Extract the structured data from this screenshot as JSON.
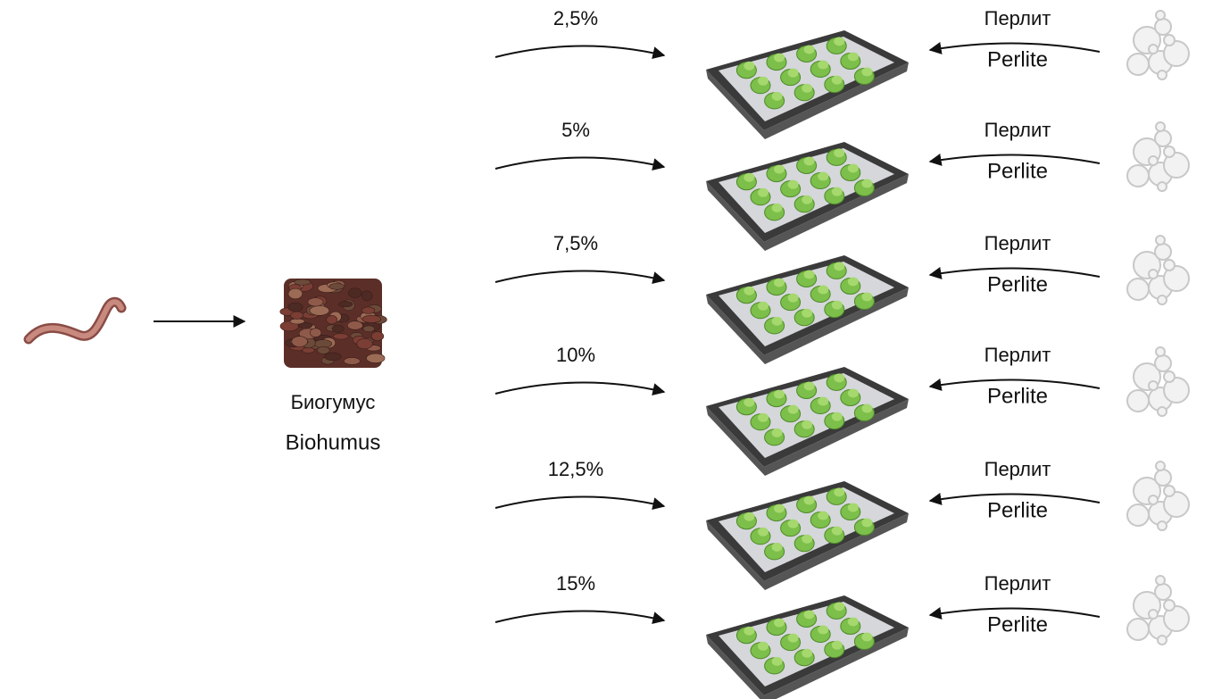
{
  "source": {
    "label_ru": "Биогумус",
    "label_en": "Biohumus"
  },
  "rows": [
    {
      "dose": "2,5%",
      "label_ru": "Перлит",
      "label_en": "Perlite"
    },
    {
      "dose": "5%",
      "label_ru": "Перлит",
      "label_en": "Perlite"
    },
    {
      "dose": "7,5%",
      "label_ru": "Перлит",
      "label_en": "Perlite"
    },
    {
      "dose": "10%",
      "label_ru": "Перлит",
      "label_en": "Perlite"
    },
    {
      "dose": "12,5%",
      "label_ru": "Перлит",
      "label_en": "Perlite"
    },
    {
      "dose": "15%",
      "label_ru": "Перлит",
      "label_en": "Perlite"
    }
  ]
}
